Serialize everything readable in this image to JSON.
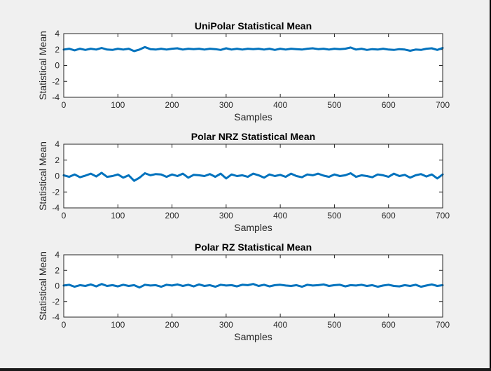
{
  "figure": {
    "background": "#f0f0f0",
    "line_color": "#0072bd"
  },
  "chart_data": [
    {
      "type": "line",
      "title": "UniPolar Statistical Mean",
      "xlabel": "Samples",
      "ylabel": "Statistical Mean",
      "xlim": [
        0,
        700
      ],
      "ylim": [
        -4,
        4
      ],
      "xticks": [
        0,
        100,
        200,
        300,
        400,
        500,
        600,
        700
      ],
      "yticks": [
        -4,
        -2,
        0,
        2,
        4
      ],
      "grid": false,
      "series": [
        {
          "x": [
            0,
            10,
            20,
            30,
            40,
            50,
            60,
            70,
            80,
            90,
            100,
            110,
            120,
            130,
            140,
            150,
            160,
            170,
            180,
            190,
            200,
            210,
            220,
            230,
            240,
            250,
            260,
            270,
            280,
            290,
            300,
            310,
            320,
            330,
            340,
            350,
            360,
            370,
            380,
            390,
            400,
            410,
            420,
            430,
            440,
            450,
            460,
            470,
            480,
            490,
            500,
            510,
            520,
            530,
            540,
            550,
            560,
            570,
            580,
            590,
            600,
            610,
            620,
            630,
            640,
            650,
            660,
            670,
            680,
            690,
            700
          ],
          "y": [
            2.0,
            2.1,
            1.9,
            2.1,
            1.95,
            2.1,
            2.0,
            2.2,
            2.0,
            1.95,
            2.1,
            2.0,
            2.1,
            1.8,
            2.0,
            2.3,
            2.05,
            2.0,
            2.1,
            2.0,
            2.1,
            2.15,
            2.0,
            2.1,
            2.05,
            2.1,
            2.0,
            2.1,
            2.05,
            1.95,
            2.15,
            2.0,
            2.1,
            2.0,
            2.1,
            2.05,
            2.1,
            2.0,
            2.1,
            1.95,
            2.1,
            2.0,
            2.1,
            2.05,
            2.0,
            2.1,
            2.15,
            2.05,
            2.1,
            2.0,
            2.1,
            2.05,
            2.1,
            2.25,
            2.0,
            2.1,
            1.95,
            2.05,
            2.0,
            2.1,
            2.0,
            1.95,
            2.05,
            2.0,
            1.85,
            2.0,
            1.95,
            2.1,
            2.15,
            1.95,
            2.2
          ]
        }
      ]
    },
    {
      "type": "line",
      "title": "Polar NRZ Statistical Mean",
      "xlabel": "Samples",
      "ylabel": "Statistical Mean",
      "xlim": [
        0,
        700
      ],
      "ylim": [
        -4,
        4
      ],
      "xticks": [
        0,
        100,
        200,
        300,
        400,
        500,
        600,
        700
      ],
      "yticks": [
        -4,
        -2,
        0,
        2,
        4
      ],
      "grid": false,
      "series": [
        {
          "x": [
            0,
            10,
            20,
            30,
            40,
            50,
            60,
            70,
            80,
            90,
            100,
            110,
            120,
            130,
            140,
            150,
            160,
            170,
            180,
            190,
            200,
            210,
            220,
            230,
            240,
            250,
            260,
            270,
            280,
            290,
            300,
            310,
            320,
            330,
            340,
            350,
            360,
            370,
            380,
            390,
            400,
            410,
            420,
            430,
            440,
            450,
            460,
            470,
            480,
            490,
            500,
            510,
            520,
            530,
            540,
            550,
            560,
            570,
            580,
            590,
            600,
            610,
            620,
            630,
            640,
            650,
            660,
            670,
            680,
            690,
            700
          ],
          "y": [
            0.1,
            -0.1,
            0.2,
            -0.15,
            0.05,
            0.3,
            -0.05,
            0.4,
            -0.1,
            0.0,
            0.2,
            -0.2,
            0.1,
            -0.6,
            -0.2,
            0.35,
            0.1,
            0.25,
            0.2,
            -0.1,
            0.2,
            0.0,
            0.3,
            -0.2,
            0.15,
            0.1,
            0.0,
            0.25,
            -0.1,
            0.3,
            -0.3,
            0.2,
            0.0,
            0.1,
            -0.1,
            0.3,
            0.1,
            -0.2,
            0.2,
            0.0,
            0.15,
            -0.1,
            0.3,
            0.0,
            -0.15,
            0.2,
            0.1,
            0.3,
            0.05,
            -0.1,
            0.2,
            0.0,
            0.1,
            0.35,
            -0.1,
            0.1,
            0.0,
            -0.15,
            0.2,
            0.1,
            -0.1,
            0.3,
            0.0,
            0.15,
            -0.2,
            0.1,
            0.25,
            -0.05,
            0.2,
            -0.3,
            0.2
          ]
        }
      ]
    },
    {
      "type": "line",
      "title": "Polar RZ Statistical Mean",
      "xlabel": "Samples",
      "ylabel": "Statistical Mean",
      "xlim": [
        0,
        700
      ],
      "ylim": [
        -4,
        4
      ],
      "xticks": [
        0,
        100,
        200,
        300,
        400,
        500,
        600,
        700
      ],
      "yticks": [
        -4,
        -2,
        0,
        2,
        4
      ],
      "grid": false,
      "series": [
        {
          "x": [
            0,
            10,
            20,
            30,
            40,
            50,
            60,
            70,
            80,
            90,
            100,
            110,
            120,
            130,
            140,
            150,
            160,
            170,
            180,
            190,
            200,
            210,
            220,
            230,
            240,
            250,
            260,
            270,
            280,
            290,
            300,
            310,
            320,
            330,
            340,
            350,
            360,
            370,
            380,
            390,
            400,
            410,
            420,
            430,
            440,
            450,
            460,
            470,
            480,
            490,
            500,
            510,
            520,
            530,
            540,
            550,
            560,
            570,
            580,
            590,
            600,
            610,
            620,
            630,
            640,
            650,
            660,
            670,
            680,
            690,
            700
          ],
          "y": [
            0.05,
            0.15,
            -0.1,
            0.1,
            0.0,
            0.2,
            -0.05,
            0.25,
            0.0,
            0.1,
            -0.05,
            0.15,
            0.0,
            0.1,
            -0.2,
            0.15,
            0.05,
            0.1,
            -0.1,
            0.15,
            0.05,
            0.2,
            0.0,
            0.15,
            -0.05,
            0.2,
            0.0,
            0.1,
            -0.1,
            0.15,
            0.05,
            0.1,
            -0.05,
            0.15,
            0.1,
            0.25,
            0.0,
            0.15,
            -0.05,
            0.1,
            0.15,
            0.05,
            0.0,
            0.1,
            -0.1,
            0.15,
            0.05,
            0.1,
            0.2,
            0.0,
            0.1,
            0.15,
            -0.05,
            0.1,
            0.05,
            0.15,
            0.0,
            0.1,
            -0.1,
            0.05,
            0.15,
            0.0,
            -0.05,
            0.1,
            0.0,
            0.15,
            -0.1,
            0.05,
            0.2,
            0.0,
            0.1
          ]
        }
      ]
    }
  ]
}
